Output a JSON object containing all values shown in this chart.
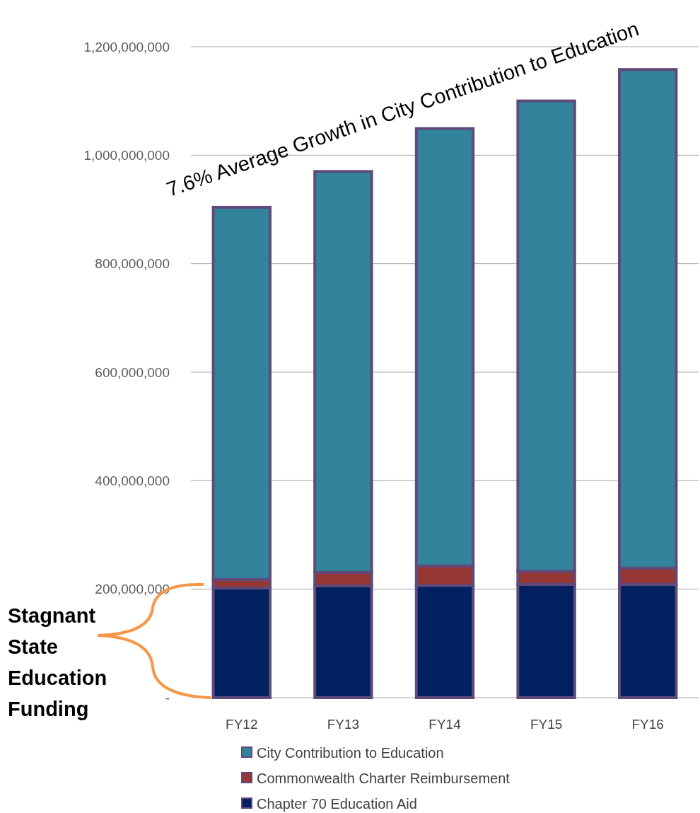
{
  "chart_data": {
    "type": "bar",
    "stacked": true,
    "categories": [
      "FY12",
      "FY13",
      "FY14",
      "FY15",
      "FY16"
    ],
    "series": [
      {
        "name": "Chapter 70 Education Aid",
        "color": "#002060",
        "values": [
          202000000,
          206000000,
          207000000,
          209000000,
          209000000
        ]
      },
      {
        "name": "Commonwealth Charter Reimbursement",
        "color": "#953735",
        "values": [
          16000000,
          25000000,
          36000000,
          24000000,
          30000000
        ]
      },
      {
        "name": "City Contribution to Education",
        "color": "#31849b",
        "values": [
          686000000,
          739000000,
          806000000,
          867000000,
          919000000
        ]
      }
    ],
    "ylim": [
      0,
      1200000000
    ],
    "yticks": [
      {
        "value": 0,
        "label": "-"
      },
      {
        "value": 200000000,
        "label": "200,000,000"
      },
      {
        "value": 400000000,
        "label": "400,000,000"
      },
      {
        "value": 600000000,
        "label": "600,000,000"
      },
      {
        "value": 800000000,
        "label": "800,000,000"
      },
      {
        "value": 1000000000,
        "label": "1,000,000,000"
      },
      {
        "value": 1200000000,
        "label": "1,200,000,000"
      }
    ],
    "grid": "y",
    "legend": "bottom",
    "annotations": [
      "7.6% Average Growth in City Contribution to Education",
      "Stagnant State Education Funding"
    ]
  }
}
